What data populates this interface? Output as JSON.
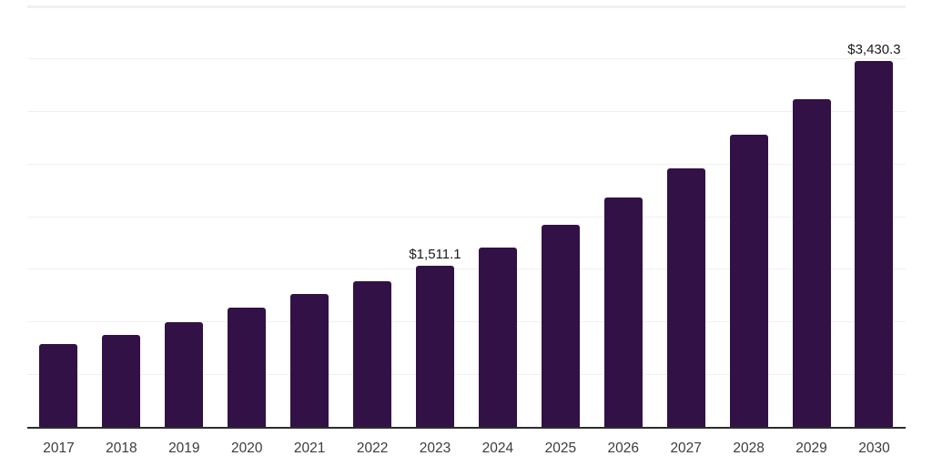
{
  "chart_data": {
    "type": "bar",
    "title": "",
    "xlabel": "",
    "ylabel": "",
    "categories": [
      "2017",
      "2018",
      "2019",
      "2020",
      "2021",
      "2022",
      "2023",
      "2024",
      "2025",
      "2026",
      "2027",
      "2028",
      "2029",
      "2030"
    ],
    "values": [
      778,
      864,
      983,
      1120,
      1248,
      1368,
      1511.1,
      1684,
      1898,
      2150,
      2424,
      2736,
      3069,
      3430.3
    ],
    "bar_labels": [
      "",
      "",
      "",
      "",
      "",
      "",
      "$1,511.1",
      "",
      "",
      "",
      "",
      "",
      "",
      "$3,430.3"
    ],
    "ylim": [
      0,
      3950
    ],
    "gridline_count": 8,
    "grid": "horizontal",
    "legend_position": "none",
    "colors": {
      "bar": "#321146",
      "axis_line": "#2d2d2d",
      "gridline": "#f0f0f2",
      "value_label": "#1a1a1a",
      "tick_label": "#3c3c3c",
      "background": "#ffffff"
    }
  }
}
